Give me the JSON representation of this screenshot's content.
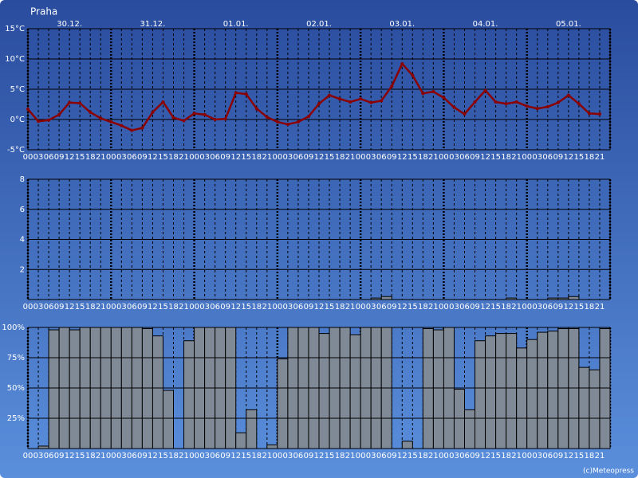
{
  "chart_data": [
    {
      "type": "line",
      "title": "Praha",
      "color": "#8b0000",
      "days": [
        "30.12.",
        "31.12.",
        "01.01.",
        "02.01.",
        "03.01.",
        "04.01.",
        "05.01."
      ],
      "categories": [
        "00",
        "03",
        "06",
        "09",
        "12",
        "15",
        "18",
        "21",
        "00",
        "03",
        "06",
        "09",
        "12",
        "15",
        "18",
        "21",
        "00",
        "03",
        "06",
        "09",
        "12",
        "15",
        "18",
        "21",
        "00",
        "03",
        "06",
        "09",
        "12",
        "15",
        "18",
        "21",
        "00",
        "03",
        "06",
        "09",
        "12",
        "15",
        "18",
        "21",
        "00",
        "03",
        "06",
        "09",
        "12",
        "15",
        "18",
        "21",
        "00",
        "03",
        "06",
        "09",
        "12",
        "15",
        "18",
        "21"
      ],
      "values": [
        1.7,
        -0.3,
        -0.1,
        0.8,
        2.8,
        2.7,
        1.2,
        0.2,
        -0.4,
        -1.0,
        -1.8,
        -1.4,
        1.2,
        2.9,
        0.3,
        -0.2,
        1.0,
        0.8,
        0.0,
        0.1,
        4.4,
        4.2,
        1.8,
        0.4,
        -0.4,
        -0.8,
        -0.4,
        0.5,
        2.6,
        4.0,
        3.4,
        2.9,
        3.4,
        2.8,
        3.1,
        5.5,
        9.2,
        7.3,
        4.3,
        4.6,
        3.6,
        2.0,
        0.9,
        2.9,
        4.8,
        2.9,
        2.6,
        2.9,
        2.2,
        1.8,
        2.1,
        2.8,
        4.0,
        2.6,
        1.0,
        0.9
      ],
      "ylim": [
        -5,
        15
      ],
      "yticks": [
        {
          "value": 15,
          "label": "15°C"
        },
        {
          "value": 10,
          "label": "10°C"
        },
        {
          "value": 5,
          "label": "5°C"
        },
        {
          "value": 0,
          "label": "0°C"
        },
        {
          "value": -5,
          "label": "-5°C"
        }
      ],
      "grid": true
    },
    {
      "type": "bar",
      "color": "#7f8a96",
      "categories": [
        "00",
        "03",
        "06",
        "09",
        "12",
        "15",
        "18",
        "21",
        "00",
        "03",
        "06",
        "09",
        "12",
        "15",
        "18",
        "21",
        "00",
        "03",
        "06",
        "09",
        "12",
        "15",
        "18",
        "21",
        "00",
        "03",
        "06",
        "09",
        "12",
        "15",
        "18",
        "21",
        "00",
        "03",
        "06",
        "09",
        "12",
        "15",
        "18",
        "21",
        "00",
        "03",
        "06",
        "09",
        "12",
        "15",
        "18",
        "21",
        "00",
        "03",
        "06",
        "09",
        "12",
        "15",
        "18",
        "21"
      ],
      "values": [
        0,
        0,
        0,
        0,
        0,
        0,
        0,
        0,
        0,
        0,
        0,
        0,
        0,
        0,
        0,
        0,
        0,
        0,
        0,
        0,
        0,
        0,
        0,
        0,
        0,
        0,
        0,
        0,
        0,
        0,
        0,
        0,
        0,
        0.1,
        0.2,
        0,
        0,
        0,
        0,
        0,
        0,
        0,
        0,
        0,
        0,
        0,
        0.1,
        0,
        0,
        0,
        0.1,
        0.1,
        0.2,
        0,
        0,
        0
      ],
      "ylim": [
        0,
        8
      ],
      "yticks": [
        2,
        4,
        6,
        8
      ],
      "grid": true
    },
    {
      "type": "bar",
      "color": "#7f8a96",
      "categories": [
        "00",
        "03",
        "06",
        "09",
        "12",
        "15",
        "18",
        "21",
        "00",
        "03",
        "06",
        "09",
        "12",
        "15",
        "18",
        "21",
        "00",
        "03",
        "06",
        "09",
        "12",
        "15",
        "18",
        "21",
        "00",
        "03",
        "06",
        "09",
        "12",
        "15",
        "18",
        "21",
        "00",
        "03",
        "06",
        "09",
        "12",
        "15",
        "18",
        "21",
        "00",
        "03",
        "06",
        "09",
        "12",
        "15",
        "18",
        "21",
        "00",
        "03",
        "06",
        "09",
        "12",
        "15",
        "18",
        "21"
      ],
      "values": [
        0,
        2,
        98,
        100,
        98,
        100,
        100,
        100,
        100,
        100,
        100,
        99,
        93,
        48,
        0,
        89,
        100,
        100,
        100,
        100,
        13,
        32,
        0,
        3,
        74,
        100,
        100,
        100,
        95,
        100,
        100,
        94,
        100,
        100,
        100,
        0,
        6,
        0,
        99,
        98,
        100,
        49,
        32,
        89,
        93,
        95,
        95,
        83,
        90,
        96,
        97,
        99,
        99,
        67,
        65,
        99
      ],
      "ylim": [
        0,
        100
      ],
      "yticks": [
        {
          "value": 25,
          "label": "25%"
        },
        {
          "value": 50,
          "label": "50%"
        },
        {
          "value": 75,
          "label": "75%"
        },
        {
          "value": 100,
          "label": "100%"
        }
      ],
      "grid": true
    }
  ],
  "footer": "(c)Meteopress"
}
